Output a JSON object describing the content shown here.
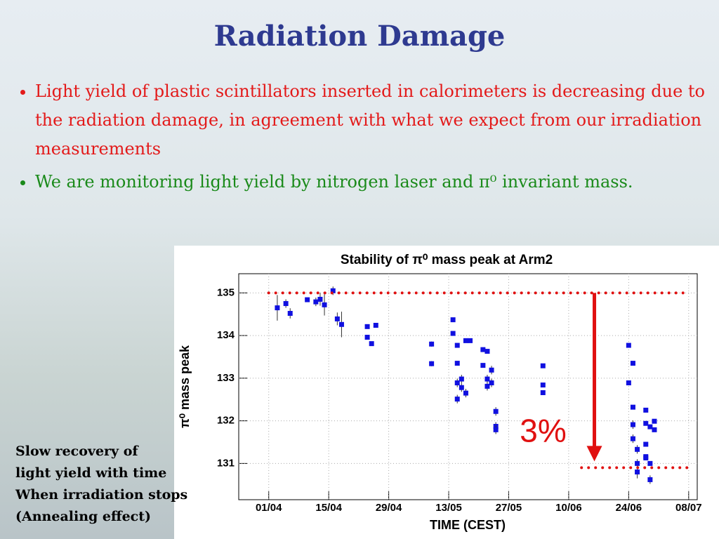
{
  "slide": {
    "title": "Radiation Damage",
    "bullets": [
      "Light yield of plastic scintillators inserted in calorimeters is decreasing due to the radiation damage, in agreement with what we expect from our irradiation measurements",
      "We are monitoring light yield by nitrogen laser and π⁰ invariant mass."
    ],
    "note": [
      "Slow recovery of",
      "light yield with time",
      "When irradiation stops",
      "(Annealing effect)"
    ]
  },
  "chart_data": {
    "type": "scatter",
    "title": "Stability of π⁰ mass peak at Arm2",
    "xlabel": "TIME (CEST)",
    "ylabel": "π⁰ mass peak",
    "color": "#1010e0",
    "error_color": "#333333",
    "grid": true,
    "xlim": [
      "25/03",
      "10/07"
    ],
    "xticks": [
      "01/04",
      "15/04",
      "29/04",
      "13/05",
      "27/05",
      "10/06",
      "24/06",
      "08/07"
    ],
    "ylim": [
      130.15,
      135.45
    ],
    "yticks": [
      131,
      132,
      133,
      134,
      135
    ],
    "x": [
      "03/04",
      "05/04",
      "06/04",
      "10/04",
      "12/04",
      "13/04",
      "14/04",
      "16/04",
      "17/04",
      "18/04",
      "24/04",
      "24/04",
      "25/04",
      "26/04",
      "09/05",
      "09/05",
      "14/05",
      "14/05",
      "15/05",
      "15/05",
      "15/05",
      "15/05",
      "16/05",
      "16/05",
      "17/05",
      "17/05",
      "18/05",
      "21/05",
      "21/05",
      "22/05",
      "22/05",
      "22/05",
      "23/05",
      "23/05",
      "24/05",
      "24/05",
      "24/05",
      "04/06",
      "04/06",
      "04/06",
      "24/06",
      "24/06",
      "25/06",
      "25/06",
      "25/06",
      "25/06",
      "26/06",
      "26/06",
      "26/06",
      "28/06",
      "28/06",
      "28/06",
      "28/06",
      "28/06",
      "29/06",
      "29/06",
      "29/06",
      "30/06",
      "30/06"
    ],
    "values": [
      134.65,
      134.75,
      134.52,
      134.84,
      134.79,
      134.85,
      134.72,
      135.05,
      134.39,
      134.26,
      134.21,
      133.96,
      133.81,
      134.24,
      133.8,
      133.34,
      134.37,
      134.05,
      133.77,
      133.35,
      132.89,
      132.51,
      132.78,
      132.98,
      132.65,
      133.88,
      133.88,
      133.67,
      133.3,
      133.63,
      132.98,
      132.81,
      133.19,
      132.89,
      132.22,
      131.87,
      131.79,
      133.29,
      132.84,
      132.66,
      133.77,
      132.89,
      133.35,
      132.32,
      131.91,
      131.58,
      131.33,
      131.0,
      130.8,
      132.25,
      131.45,
      131.13,
      131.94,
      131.16,
      131.86,
      131.0,
      130.62,
      131.99,
      131.79
    ],
    "errors": [
      0.3,
      0.1,
      0.12,
      0.05,
      0.1,
      0.15,
      0.25,
      0.1,
      0.15,
      0.3,
      0.05,
      0.05,
      0.05,
      0.05,
      0.06,
      0.06,
      0.05,
      0.05,
      0.05,
      0.05,
      0.1,
      0.1,
      0.1,
      0.1,
      0.1,
      0.05,
      0.05,
      0.05,
      0.05,
      0.05,
      0.1,
      0.1,
      0.1,
      0.1,
      0.1,
      0.1,
      0.1,
      0.05,
      0.05,
      0.05,
      0.05,
      0.05,
      0.05,
      0.05,
      0.1,
      0.1,
      0.1,
      0.1,
      0.15,
      0.05,
      0.05,
      0.05,
      0.05,
      0.05,
      0.05,
      0.05,
      0.1,
      0.05,
      0.05
    ],
    "reference_lines": [
      {
        "value": 135,
        "from": "01/04",
        "to": "08/07",
        "color": "#e01010"
      },
      {
        "value": 130.9,
        "from": "13/06",
        "to": "08/07",
        "color": "#e01010"
      }
    ],
    "arrow": {
      "x": "16/06",
      "from": 135,
      "to": 131.05,
      "color": "#e01010"
    },
    "annotation": "3%"
  }
}
